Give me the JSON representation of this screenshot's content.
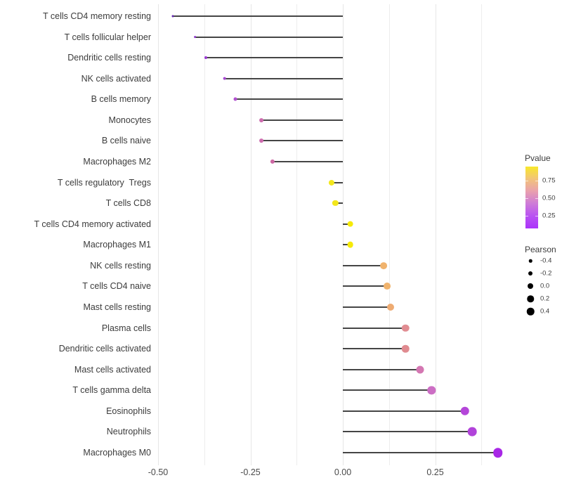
{
  "chart_data": {
    "type": "scatter",
    "subtype": "horizontal-lollipop",
    "title": "",
    "xlabel": "",
    "ylabel": "",
    "xlim": [
      -0.51,
      0.435
    ],
    "baseline_value": 0,
    "grid": "on",
    "x_ticks": [
      {
        "label": "-0.50",
        "value": -0.5
      },
      {
        "label": "-0.25",
        "value": -0.25
      },
      {
        "label": "0.00",
        "value": 0.0
      },
      {
        "label": "0.25",
        "value": 0.25
      }
    ],
    "minor_gridlines": [
      -0.375,
      -0.125,
      0.125,
      0.375
    ],
    "rows": [
      {
        "label": "T cells CD4 memory resting",
        "pearson": -0.46,
        "color": "#6325ae"
      },
      {
        "label": "T cells follicular helper",
        "pearson": -0.4,
        "color": "#8c35cb"
      },
      {
        "label": "Dendritic cells resting",
        "pearson": -0.37,
        "color": "#9a3ad2"
      },
      {
        "label": "NK cells activated",
        "pearson": -0.32,
        "color": "#a747d2"
      },
      {
        "label": "B cells memory",
        "pearson": -0.29,
        "color": "#b150cf"
      },
      {
        "label": "Monocytes",
        "pearson": -0.22,
        "color": "#cd6cae"
      },
      {
        "label": "B cells naive",
        "pearson": -0.22,
        "color": "#cd6cae"
      },
      {
        "label": "Macrophages M2",
        "pearson": -0.19,
        "color": "#cd68a4"
      },
      {
        "label": "T cells regulatory  Tregs",
        "pearson": -0.03,
        "color": "#f3e71c"
      },
      {
        "label": "T cells CD8",
        "pearson": -0.02,
        "color": "#f3e71c"
      },
      {
        "label": "T cells CD4 memory activated",
        "pearson": 0.02,
        "color": "#f6ea07"
      },
      {
        "label": "Macrophages M1",
        "pearson": 0.02,
        "color": "#f6ea07"
      },
      {
        "label": "NK cells resting",
        "pearson": 0.11,
        "color": "#f0b36d"
      },
      {
        "label": "T cells CD4 naive",
        "pearson": 0.12,
        "color": "#f0b36d"
      },
      {
        "label": "Mast cells resting",
        "pearson": 0.13,
        "color": "#eeab72"
      },
      {
        "label": "Plasma cells",
        "pearson": 0.17,
        "color": "#e18d92"
      },
      {
        "label": "Dendritic cells activated",
        "pearson": 0.17,
        "color": "#e08b90"
      },
      {
        "label": "Mast cells activated",
        "pearson": 0.21,
        "color": "#d477b2"
      },
      {
        "label": "T cells gamma delta",
        "pearson": 0.24,
        "color": "#cc6ec4"
      },
      {
        "label": "Eosinophils",
        "pearson": 0.33,
        "color": "#b446d9"
      },
      {
        "label": "Neutrophils",
        "pearson": 0.35,
        "color": "#b143da"
      },
      {
        "label": "Macrophages M0",
        "pearson": 0.42,
        "color": "#a827e6"
      }
    ],
    "legend_pvalue": {
      "title": "Pvalue",
      "tick_labels": [
        "0.75",
        "0.50",
        "0.25"
      ],
      "gradient_stops": [
        "#f8e82a",
        "#f2c379",
        "#e9a0ae",
        "#cd7bd8",
        "#b952f2",
        "#ab33fa"
      ]
    },
    "legend_pearson": {
      "title": "Pearson",
      "items": [
        {
          "label": "-0.4",
          "size": 4.5
        },
        {
          "label": "-0.2",
          "size": 6
        },
        {
          "label": "0.0",
          "size": 8
        },
        {
          "label": "0.2",
          "size": 9.5
        },
        {
          "label": "0.4",
          "size": 10.5
        }
      ]
    }
  }
}
